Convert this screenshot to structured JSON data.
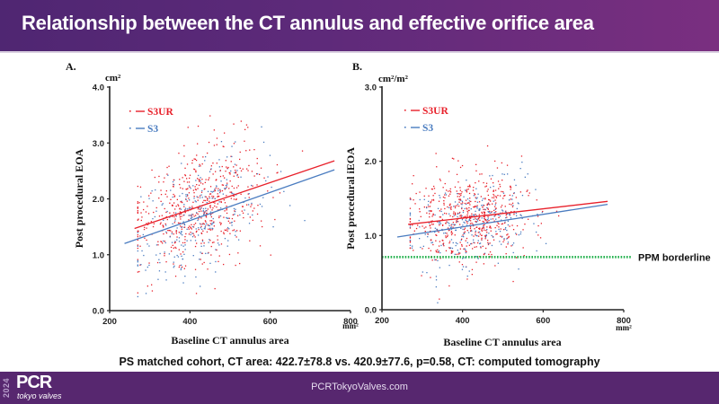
{
  "header": {
    "title": "Relationship between the CT annulus and effective orifice area"
  },
  "caption": "PS matched cohort, CT area: 422.7±78.8 vs. 420.9±77.6, p=0.58, CT: computed tomography",
  "footer": {
    "url": "PCRTokyoValves.com",
    "logo_year": "2024",
    "logo_main": "PCR",
    "logo_sub": "tokyo valves"
  },
  "colors": {
    "s3ur": "#e8202a",
    "s3": "#4a7cc0",
    "ppm": "#22b14c",
    "axis": "#222222"
  },
  "chart_data": [
    {
      "type": "scatter",
      "panel_label": "A.",
      "title": "",
      "xlabel": "Baseline CT annulus area",
      "x_unit": "mm²",
      "ylabel": "Post procedural EOA",
      "y_unit": "cm²",
      "xlim": [
        200,
        800
      ],
      "ylim": [
        0,
        4
      ],
      "x_ticks": [
        "200",
        "400",
        "600",
        "800"
      ],
      "x_tick_values": [
        200,
        400,
        600,
        800
      ],
      "y_ticks": [
        "0.0",
        "1.0",
        "2.0",
        "3.0",
        "4.0"
      ],
      "y_tick_values": [
        0,
        1,
        2,
        3,
        4
      ],
      "grid": false,
      "legend": {
        "placement": "top-left",
        "entries": [
          "S3UR",
          "S3"
        ]
      },
      "series": [
        {
          "name": "S3UR",
          "color_key": "s3ur",
          "point_cloud": {
            "n": 560,
            "x_mean": 420,
            "x_sd": 78,
            "y_mean": 1.85,
            "y_sd": 0.5,
            "slope": 0.0025,
            "seed": 11
          },
          "regression": {
            "x": [
              262,
              760
            ],
            "y": [
              1.47,
              2.68
            ]
          }
        },
        {
          "name": "S3",
          "color_key": "s3",
          "point_cloud": {
            "n": 300,
            "x_mean": 420,
            "x_sd": 78,
            "y_mean": 1.65,
            "y_sd": 0.45,
            "slope": 0.0026,
            "seed": 23
          },
          "regression": {
            "x": [
              237,
              760
            ],
            "y": [
              1.2,
              2.52
            ]
          }
        }
      ]
    },
    {
      "type": "scatter",
      "panel_label": "B.",
      "title": "",
      "xlabel": "Baseline CT annulus area",
      "x_unit": "mm²",
      "ylabel": "Post procedural iEOA",
      "y_unit": "cm²/m²",
      "xlim": [
        200,
        800
      ],
      "ylim": [
        0,
        3
      ],
      "x_ticks": [
        "200",
        "400",
        "600",
        "800"
      ],
      "x_tick_values": [
        200,
        400,
        600,
        800
      ],
      "y_ticks": [
        "0.0",
        "1.0",
        "2.0",
        "3.0"
      ],
      "y_tick_values": [
        0,
        1,
        2,
        3
      ],
      "grid": false,
      "legend": {
        "placement": "top-left",
        "entries": [
          "S3UR",
          "S3"
        ]
      },
      "reference_line": {
        "label": "PPM borderline",
        "y": 0.71,
        "style": "dotted"
      },
      "series": [
        {
          "name": "S3UR",
          "color_key": "s3ur",
          "point_cloud": {
            "n": 560,
            "x_mean": 420,
            "x_sd": 78,
            "y_mean": 1.25,
            "y_sd": 0.32,
            "slope": 0.0006,
            "seed": 37
          },
          "regression": {
            "x": [
              265,
              760
            ],
            "y": [
              1.15,
              1.46
            ]
          }
        },
        {
          "name": "S3",
          "color_key": "s3",
          "point_cloud": {
            "n": 300,
            "x_mean": 420,
            "x_sd": 78,
            "y_mean": 1.12,
            "y_sd": 0.28,
            "slope": 0.0008,
            "seed": 53
          },
          "regression": {
            "x": [
              238,
              760
            ],
            "y": [
              0.98,
              1.42
            ]
          }
        }
      ]
    }
  ]
}
